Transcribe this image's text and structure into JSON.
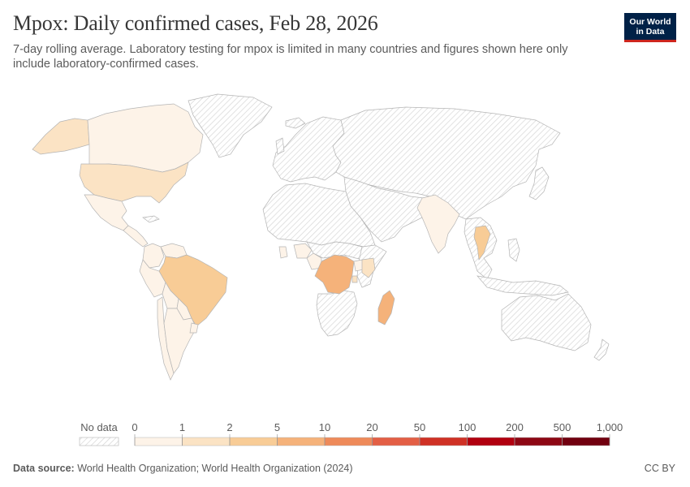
{
  "title": "Mpox: Daily confirmed cases, Feb 28, 2026",
  "subtitle": "7-day rolling average. Laboratory testing for mpox is limited in many countries and figures shown here only include laboratory-confirmed cases.",
  "logo": {
    "line1": "Our World",
    "line2": "in Data"
  },
  "legend": {
    "no_data_label": "No data",
    "bins": [
      "0",
      "1",
      "2",
      "5",
      "10",
      "20",
      "50",
      "100",
      "200",
      "500",
      "1,000"
    ],
    "colors": [
      "#fdf3e8",
      "#fbe3c4",
      "#f8cc96",
      "#f5b27a",
      "#ee8a5a",
      "#e35f45",
      "#cf3125",
      "#b1000f",
      "#8d0714",
      "#71000f"
    ],
    "no_data_color": "#e8e8e8"
  },
  "map": {
    "date": "Feb 28, 2026",
    "colored_regions": [
      {
        "name": "Canada",
        "color": "#fdf3e8"
      },
      {
        "name": "Alaska (United States)",
        "color": "#fbe3c4"
      },
      {
        "name": "United States",
        "color": "#fbe3c4"
      },
      {
        "name": "Mexico",
        "color": "#fdf3e8"
      },
      {
        "name": "Central America",
        "color": "#fdf3e8"
      },
      {
        "name": "Colombia",
        "color": "#fdf3e8"
      },
      {
        "name": "Venezuela",
        "color": "#fdf3e8"
      },
      {
        "name": "Peru",
        "color": "#fdf3e8"
      },
      {
        "name": "Bolivia",
        "color": "#fdf3e8"
      },
      {
        "name": "Brazil",
        "color": "#f8cc96"
      },
      {
        "name": "Paraguay",
        "color": "#fdf3e8"
      },
      {
        "name": "Chile",
        "color": "#fdf3e8"
      },
      {
        "name": "Argentina",
        "color": "#fdf3e8"
      },
      {
        "name": "Uruguay",
        "color": "#fdf3e8"
      },
      {
        "name": "India",
        "color": "#fdf3e8"
      },
      {
        "name": "Thailand",
        "color": "#f8cc96"
      },
      {
        "name": "Democratic Republic of Congo",
        "color": "#f5b27a"
      },
      {
        "name": "Kenya",
        "color": "#fbe3c4"
      },
      {
        "name": "Madagascar",
        "color": "#f5b27a"
      },
      {
        "name": "Cameroon",
        "color": "#fdf3e8"
      },
      {
        "name": "Nigeria",
        "color": "#fdf3e8"
      },
      {
        "name": "Ghana",
        "color": "#fdf3e8"
      },
      {
        "name": "Burundi",
        "color": "#fbe3c4"
      },
      {
        "name": "Uganda",
        "color": "#fdf3e8"
      }
    ]
  },
  "footer": {
    "source_label": "Data source:",
    "source_text": "World Health Organization; World Health Organization (2024)",
    "license": "CC BY"
  }
}
